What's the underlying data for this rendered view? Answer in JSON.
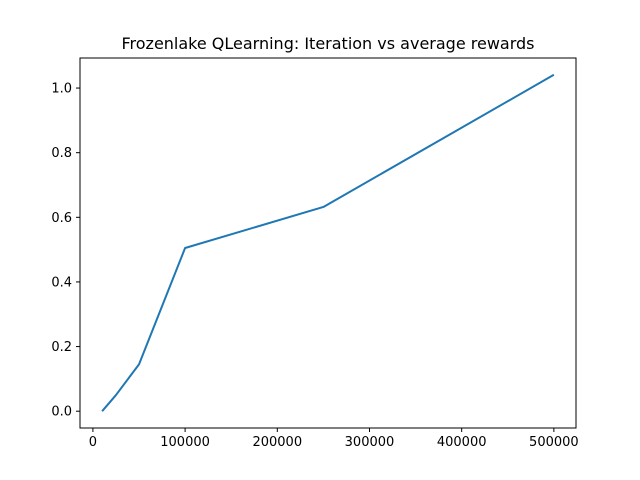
{
  "chart_data": {
    "type": "line",
    "title": "Frozenlake QLearning: Iteration vs average rewards",
    "xlabel": "",
    "ylabel": "",
    "xlim": [
      -14000,
      524000
    ],
    "ylim": [
      -0.052,
      1.093
    ],
    "x_ticks": [
      0,
      100000,
      200000,
      300000,
      400000,
      500000
    ],
    "y_ticks": [
      0.0,
      0.2,
      0.4,
      0.6,
      0.8,
      1.0
    ],
    "x_tick_labels": [
      "0",
      "100000",
      "200000",
      "300000",
      "400000",
      "500000"
    ],
    "y_tick_labels": [
      "0.0",
      "0.2",
      "0.4",
      "0.6",
      "0.8",
      "1.0"
    ],
    "grid": false,
    "legend": "none",
    "series": [
      {
        "color": "#1f77b4",
        "x": [
          10000,
          25000,
          50000,
          100000,
          250000,
          500000
        ],
        "y": [
          0.0,
          0.05,
          0.145,
          0.505,
          0.632,
          1.041
        ]
      }
    ]
  }
}
